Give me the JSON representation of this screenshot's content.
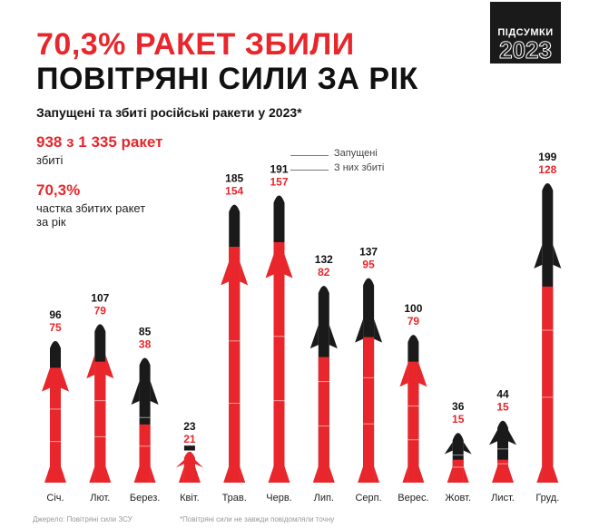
{
  "header": {
    "title_line1": "70,3% РАКЕТ ЗБИЛИ",
    "title_line2": "ПОВІТРЯНІ СИЛИ ЗА РІК",
    "badge_top": "ПІДСУМКИ",
    "badge_year": "2023"
  },
  "subtitle": "Запущені та збиті російські ракети у 2023*",
  "stats": {
    "total_value": "938 з 1 335 ракет",
    "total_caption": "збиті",
    "percent_value": "70,3%",
    "percent_caption": "частка збитих ракет за рік"
  },
  "legend": {
    "launched": "Запущені",
    "shot_down": "З них збиті"
  },
  "footer": {
    "source": "Джерело: Повітряні сили ЗСУ",
    "note": "*Повітряні сили не завжди повідомляли точну"
  },
  "colors": {
    "launched": "#1a1a1a",
    "shot_down": "#e8262b"
  },
  "chart_data": {
    "type": "bar",
    "categories": [
      "Січ.",
      "Лют.",
      "Берез.",
      "Квіт.",
      "Трав.",
      "Черв.",
      "Лип.",
      "Серп.",
      "Верес.",
      "Жовт.",
      "Лист.",
      "Груд."
    ],
    "series": [
      {
        "name": "Запущені",
        "values": [
          96,
          107,
          85,
          23,
          185,
          191,
          132,
          137,
          100,
          36,
          44,
          199
        ]
      },
      {
        "name": "З них збиті",
        "values": [
          75,
          79,
          38,
          21,
          154,
          157,
          82,
          95,
          79,
          15,
          15,
          128
        ]
      }
    ],
    "ylim": [
      0,
      199
    ],
    "legend_position": "top-center"
  }
}
